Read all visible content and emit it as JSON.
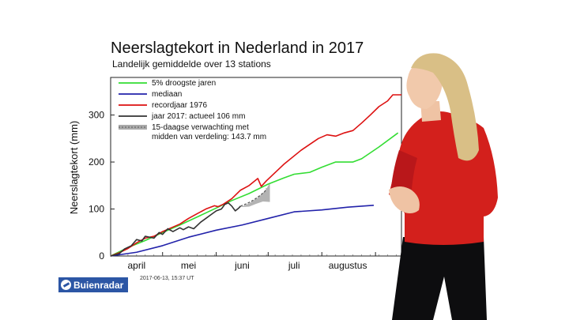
{
  "chart_data": {
    "type": "line",
    "title": "Neerslagtekort in Nederland in 2017",
    "subtitle": "Landelijk gemiddelde over 13 stations",
    "ylabel": "Neerslagtekort (mm)",
    "xlabel": "",
    "ylim": [
      0,
      380
    ],
    "yticks": [
      0,
      100,
      200,
      300
    ],
    "months": [
      {
        "label": "april",
        "day": 15
      },
      {
        "label": "mei",
        "day": 45
      },
      {
        "label": "juni",
        "day": 76
      },
      {
        "label": "juli",
        "day": 106
      },
      {
        "label": "augustus",
        "day": 137
      }
    ],
    "month_boundaries": [
      0,
      30,
      61,
      91,
      122,
      153
    ],
    "grid": false,
    "legend_position": "top-left",
    "series": [
      {
        "name": "5% droogste jaren",
        "color": "#33dd33",
        "style": "solid",
        "points": [
          [
            0,
            0
          ],
          [
            10,
            18
          ],
          [
            20,
            33
          ],
          [
            30,
            50
          ],
          [
            40,
            66
          ],
          [
            50,
            83
          ],
          [
            61,
            102
          ],
          [
            70,
            118
          ],
          [
            80,
            133
          ],
          [
            91,
            153
          ],
          [
            100,
            166
          ],
          [
            106,
            174
          ],
          [
            115,
            178
          ],
          [
            122,
            189
          ],
          [
            130,
            200
          ],
          [
            140,
            200
          ],
          [
            145,
            207
          ],
          [
            155,
            232
          ],
          [
            166,
            262
          ]
        ]
      },
      {
        "name": "mediaan",
        "color": "#2222aa",
        "style": "solid",
        "points": [
          [
            0,
            0
          ],
          [
            15,
            8
          ],
          [
            30,
            22
          ],
          [
            45,
            40
          ],
          [
            61,
            55
          ],
          [
            76,
            66
          ],
          [
            91,
            80
          ],
          [
            106,
            94
          ],
          [
            122,
            98
          ],
          [
            137,
            104
          ],
          [
            152,
            108
          ]
        ]
      },
      {
        "name": "recordjaar 1976",
        "color": "#dd1111",
        "style": "solid",
        "points": [
          [
            0,
            0
          ],
          [
            5,
            7
          ],
          [
            10,
            16
          ],
          [
            15,
            28
          ],
          [
            20,
            38
          ],
          [
            25,
            42
          ],
          [
            30,
            52
          ],
          [
            35,
            60
          ],
          [
            40,
            68
          ],
          [
            45,
            80
          ],
          [
            50,
            90
          ],
          [
            55,
            100
          ],
          [
            60,
            107
          ],
          [
            62,
            105
          ],
          [
            65,
            110
          ],
          [
            70,
            122
          ],
          [
            75,
            140
          ],
          [
            80,
            150
          ],
          [
            85,
            165
          ],
          [
            87,
            148
          ],
          [
            90,
            160
          ],
          [
            100,
            195
          ],
          [
            110,
            225
          ],
          [
            120,
            250
          ],
          [
            125,
            258
          ],
          [
            130,
            255
          ],
          [
            135,
            262
          ],
          [
            140,
            267
          ],
          [
            145,
            283
          ],
          [
            150,
            300
          ],
          [
            155,
            318
          ],
          [
            160,
            330
          ],
          [
            163,
            343
          ],
          [
            168,
            343
          ]
        ]
      },
      {
        "name": "jaar 2017: actueel 106 mm",
        "color": "#333333",
        "style": "solid",
        "points": [
          [
            0,
            0
          ],
          [
            5,
            5
          ],
          [
            8,
            15
          ],
          [
            12,
            22
          ],
          [
            15,
            35
          ],
          [
            18,
            32
          ],
          [
            20,
            42
          ],
          [
            25,
            38
          ],
          [
            28,
            50
          ],
          [
            30,
            46
          ],
          [
            33,
            58
          ],
          [
            36,
            52
          ],
          [
            40,
            60
          ],
          [
            42,
            56
          ],
          [
            45,
            62
          ],
          [
            48,
            58
          ],
          [
            52,
            72
          ],
          [
            55,
            80
          ],
          [
            58,
            88
          ],
          [
            61,
            96
          ],
          [
            64,
            100
          ],
          [
            66,
            110
          ],
          [
            68,
            113
          ],
          [
            70,
            106
          ],
          [
            72,
            96
          ],
          [
            74,
            102
          ],
          [
            75,
            106
          ]
        ]
      },
      {
        "name": "15-daagse verwachting met midden van verdeling: 143.7 mm",
        "color": "#555555",
        "style": "dashed",
        "points": [
          [
            75,
            106
          ],
          [
            79,
            112
          ],
          [
            83,
            120
          ],
          [
            86,
            128
          ],
          [
            89,
            137
          ],
          [
            90,
            143.7
          ]
        ]
      }
    ],
    "forecast_band": [
      [
        75,
        104
      ],
      [
        80,
        112
      ],
      [
        85,
        124
      ],
      [
        88,
        134
      ],
      [
        90,
        143
      ],
      [
        92,
        156
      ],
      [
        92,
        115
      ],
      [
        88,
        116
      ],
      [
        84,
        111
      ],
      [
        80,
        105
      ],
      [
        75,
        104
      ]
    ]
  },
  "footer": {
    "logo": "Buienradar",
    "timestamp": "2017-06-13, 15:37 UT"
  }
}
